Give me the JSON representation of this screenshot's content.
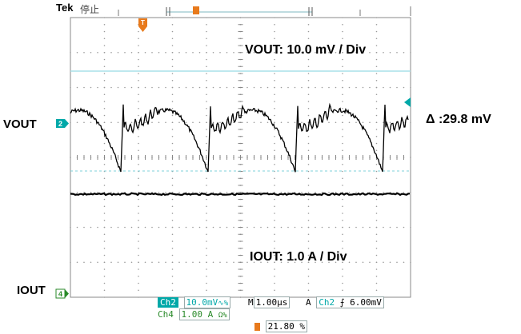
{
  "header": {
    "brand": "Tek",
    "run_state": "停止"
  },
  "channels": {
    "ch2_label": "VOUT",
    "ch2_marker": "2",
    "ch4_label": "IOUT",
    "ch4_marker": "4"
  },
  "annotations": {
    "vout_scale": "VOUT: 10.0 mV / Div",
    "iout_scale": "IOUT: 1.0 A / Div",
    "delta": "Δ :29.8 mV"
  },
  "readouts": {
    "ch2_tag": "Ch2",
    "ch2_scale": "10.0mV",
    "ch2_coupling": "∿%",
    "timebase_prefix": "M",
    "timebase": "1.00µs",
    "trigger_prefix": "A",
    "trigger_source": "Ch2",
    "trigger_slope": "⨍",
    "trigger_level": "6.00mV",
    "ch4_tag": "Ch4",
    "ch4_scale": "1.00 A",
    "ch4_coupling": "Ω%",
    "trigger_position": "21.80 %"
  },
  "colors": {
    "grid": "#a0a0a0",
    "cursor": "#a8e0e8",
    "ch2": "#00a8a8",
    "ch4": "#2a8a2a",
    "trigger": "#e87a1c",
    "trace": "#000000"
  }
}
